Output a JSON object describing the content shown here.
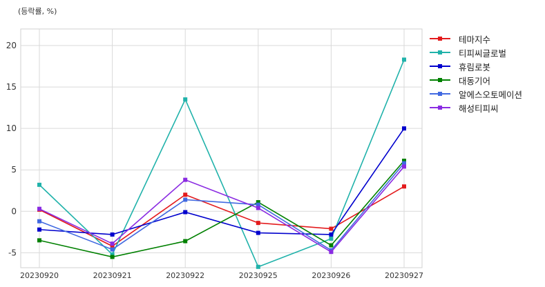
{
  "chart_data": {
    "type": "line",
    "title": "",
    "ylabel": "(등락률, %)",
    "xlabel": "",
    "categories": [
      "20230920",
      "20230921",
      "20230922",
      "20230925",
      "20230926",
      "20230927"
    ],
    "ylim": [
      -6.8,
      22
    ],
    "yticks": [
      -5,
      0,
      5,
      10,
      15,
      20
    ],
    "grid": true,
    "legend_position": "outside-right",
    "series": [
      {
        "name": "테마지수",
        "color": "#e31a1c",
        "values": [
          0.2,
          -4.2,
          2.0,
          -1.4,
          -2.1,
          3.0
        ]
      },
      {
        "name": "티피씨글로벌",
        "color": "#20b2aa",
        "values": [
          3.2,
          -5.2,
          13.5,
          -6.7,
          -3.3,
          18.3
        ]
      },
      {
        "name": "휴림로봇",
        "color": "#0000cd",
        "values": [
          -2.2,
          -2.8,
          -0.1,
          -2.6,
          -2.8,
          10.0
        ]
      },
      {
        "name": "대동기어",
        "color": "#008000",
        "values": [
          -3.5,
          -5.5,
          -3.6,
          1.1,
          -4.1,
          6.1
        ]
      },
      {
        "name": "알에스오토메이션",
        "color": "#4169e1",
        "values": [
          -1.2,
          -4.6,
          1.4,
          0.8,
          -4.7,
          5.8
        ]
      },
      {
        "name": "해성티피씨",
        "color": "#8a2be2",
        "values": [
          0.3,
          -3.9,
          3.8,
          0.4,
          -4.9,
          5.4
        ]
      }
    ]
  }
}
